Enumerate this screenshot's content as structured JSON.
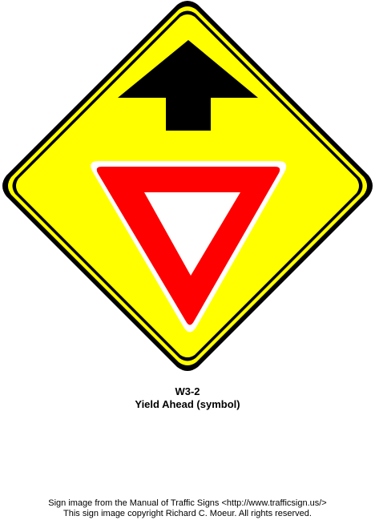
{
  "sign": {
    "code": "W3-2",
    "name": "Yield Ahead (symbol)",
    "symbols": {
      "arrow": "arrow-up-icon",
      "yield": "yield-triangle-icon"
    }
  },
  "colors": {
    "background": "#ffffff",
    "sign_yellow": "#ffff00",
    "sign_border": "#000000",
    "arrow": "#000000",
    "yield_red": "#ff0000",
    "yield_inner": "#ffffff",
    "text": "#000000"
  },
  "footer": {
    "line1": "Sign image from the Manual of Traffic Signs <http://www.trafficsign.us/>",
    "line2": "This sign image copyright Richard C. Moeur. All rights reserved."
  }
}
